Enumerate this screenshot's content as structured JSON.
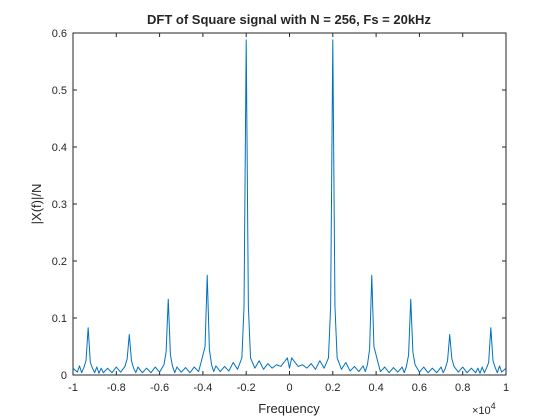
{
  "chart_data": {
    "type": "line",
    "title": "DFT of  Square signal with N = 256, Fs = 20kHz",
    "xlabel": "Frequency",
    "ylabel": "|X(f)|/N",
    "xlim": [
      -10000,
      10000
    ],
    "ylim": [
      0,
      0.6
    ],
    "grid": false,
    "x_exponent_label": "×10",
    "x_exponent_power": "4",
    "x_ticks": [
      -10000,
      -8000,
      -6000,
      -4000,
      -2000,
      0,
      2000,
      4000,
      6000,
      8000,
      10000
    ],
    "x_tick_labels": [
      "-1",
      "-0.8",
      "-0.6",
      "-0.4",
      "-0.2",
      "0",
      "0.2",
      "0.4",
      "0.6",
      "0.8",
      "1"
    ],
    "y_ticks": [
      0,
      0.1,
      0.2,
      0.3,
      0.4,
      0.5,
      0.6
    ],
    "y_tick_labels": [
      "0",
      "0.1",
      "0.2",
      "0.3",
      "0.4",
      "0.5",
      "0.6"
    ],
    "series_color": "#0072BD",
    "series": [
      {
        "points": [
          [
            -10000,
            0.012
          ],
          [
            -9800,
            0.005
          ],
          [
            -9700,
            0.016
          ],
          [
            -9600,
            0.004
          ],
          [
            -9500,
            0.013
          ],
          [
            -9400,
            0.025
          ],
          [
            -9300,
            0.083
          ],
          [
            -9200,
            0.022
          ],
          [
            -9100,
            0.012
          ],
          [
            -9000,
            0.004
          ],
          [
            -8900,
            0.014
          ],
          [
            -8800,
            0.003
          ],
          [
            -8700,
            0.012
          ],
          [
            -8600,
            0.004
          ],
          [
            -8400,
            0.012
          ],
          [
            -8200,
            0.004
          ],
          [
            -8000,
            0.014
          ],
          [
            -7800,
            0.005
          ],
          [
            -7600,
            0.015
          ],
          [
            -7500,
            0.028
          ],
          [
            -7400,
            0.071
          ],
          [
            -7300,
            0.025
          ],
          [
            -7200,
            0.012
          ],
          [
            -7100,
            0.004
          ],
          [
            -7000,
            0.014
          ],
          [
            -6800,
            0.004
          ],
          [
            -6600,
            0.012
          ],
          [
            -6400,
            0.004
          ],
          [
            -6200,
            0.014
          ],
          [
            -6000,
            0.005
          ],
          [
            -5800,
            0.018
          ],
          [
            -5700,
            0.04
          ],
          [
            -5600,
            0.133
          ],
          [
            -5500,
            0.035
          ],
          [
            -5400,
            0.015
          ],
          [
            -5300,
            0.004
          ],
          [
            -5200,
            0.014
          ],
          [
            -5000,
            0.005
          ],
          [
            -4800,
            0.013
          ],
          [
            -4600,
            0.004
          ],
          [
            -4400,
            0.014
          ],
          [
            -4200,
            0.006
          ],
          [
            -4100,
            0.02
          ],
          [
            -3900,
            0.05
          ],
          [
            -3800,
            0.175
          ],
          [
            -3700,
            0.045
          ],
          [
            -3600,
            0.018
          ],
          [
            -3500,
            0.006
          ],
          [
            -3400,
            0.016
          ],
          [
            -3200,
            0.006
          ],
          [
            -3000,
            0.015
          ],
          [
            -2800,
            0.007
          ],
          [
            -2600,
            0.022
          ],
          [
            -2400,
            0.01
          ],
          [
            -2200,
            0.03
          ],
          [
            -2100,
            0.12
          ],
          [
            -2000,
            0.588
          ],
          [
            -1900,
            0.12
          ],
          [
            -1800,
            0.03
          ],
          [
            -1600,
            0.012
          ],
          [
            -1400,
            0.025
          ],
          [
            -1200,
            0.01
          ],
          [
            -1000,
            0.02
          ],
          [
            -800,
            0.012
          ],
          [
            -600,
            0.018
          ],
          [
            -400,
            0.015
          ],
          [
            -200,
            0.025
          ],
          [
            -100,
            0.03
          ],
          [
            0,
            0.012
          ],
          [
            100,
            0.03
          ],
          [
            200,
            0.025
          ],
          [
            400,
            0.015
          ],
          [
            600,
            0.018
          ],
          [
            800,
            0.012
          ],
          [
            1000,
            0.02
          ],
          [
            1200,
            0.01
          ],
          [
            1400,
            0.025
          ],
          [
            1600,
            0.012
          ],
          [
            1800,
            0.03
          ],
          [
            1900,
            0.12
          ],
          [
            2000,
            0.588
          ],
          [
            2100,
            0.12
          ],
          [
            2200,
            0.03
          ],
          [
            2400,
            0.01
          ],
          [
            2600,
            0.022
          ],
          [
            2800,
            0.007
          ],
          [
            3000,
            0.015
          ],
          [
            3200,
            0.006
          ],
          [
            3400,
            0.016
          ],
          [
            3500,
            0.006
          ],
          [
            3600,
            0.018
          ],
          [
            3700,
            0.045
          ],
          [
            3800,
            0.175
          ],
          [
            3900,
            0.05
          ],
          [
            4100,
            0.02
          ],
          [
            4200,
            0.006
          ],
          [
            4400,
            0.014
          ],
          [
            4600,
            0.004
          ],
          [
            4800,
            0.013
          ],
          [
            5000,
            0.005
          ],
          [
            5200,
            0.014
          ],
          [
            5300,
            0.004
          ],
          [
            5400,
            0.015
          ],
          [
            5500,
            0.035
          ],
          [
            5600,
            0.133
          ],
          [
            5700,
            0.04
          ],
          [
            5800,
            0.018
          ],
          [
            6000,
            0.005
          ],
          [
            6200,
            0.014
          ],
          [
            6400,
            0.004
          ],
          [
            6600,
            0.012
          ],
          [
            6800,
            0.004
          ],
          [
            7000,
            0.014
          ],
          [
            7100,
            0.004
          ],
          [
            7200,
            0.012
          ],
          [
            7300,
            0.025
          ],
          [
            7400,
            0.071
          ],
          [
            7500,
            0.028
          ],
          [
            7600,
            0.015
          ],
          [
            7800,
            0.005
          ],
          [
            8000,
            0.014
          ],
          [
            8200,
            0.004
          ],
          [
            8400,
            0.012
          ],
          [
            8600,
            0.004
          ],
          [
            8700,
            0.012
          ],
          [
            8800,
            0.003
          ],
          [
            8900,
            0.014
          ],
          [
            9000,
            0.004
          ],
          [
            9100,
            0.012
          ],
          [
            9200,
            0.022
          ],
          [
            9300,
            0.083
          ],
          [
            9400,
            0.025
          ],
          [
            9500,
            0.013
          ],
          [
            9600,
            0.004
          ],
          [
            9700,
            0.016
          ],
          [
            9800,
            0.005
          ],
          [
            10000,
            0.012
          ]
        ]
      }
    ]
  }
}
